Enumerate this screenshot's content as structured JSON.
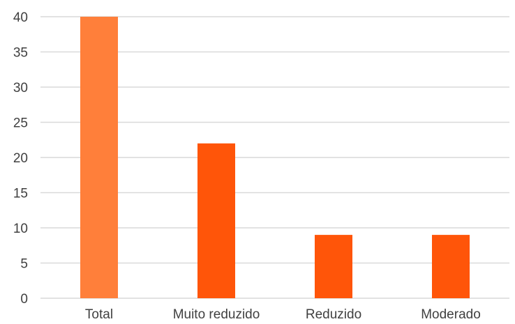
{
  "chart_data": {
    "type": "bar",
    "title": "",
    "xlabel": "",
    "ylabel": "",
    "categories": [
      "Total",
      "Muito reduzido",
      "Reduzido",
      "Moderado"
    ],
    "values": [
      40,
      22,
      9,
      9
    ],
    "bar_colors": [
      "#ff7f3a",
      "#ff5509",
      "#ff5509",
      "#ff5509"
    ],
    "ylim": [
      0,
      40
    ],
    "yticks": [
      "0",
      "5",
      "10",
      "15",
      "20",
      "25",
      "30",
      "35",
      "40"
    ],
    "grid": true,
    "grid_color": "#d9d9d9",
    "legend": "none"
  }
}
